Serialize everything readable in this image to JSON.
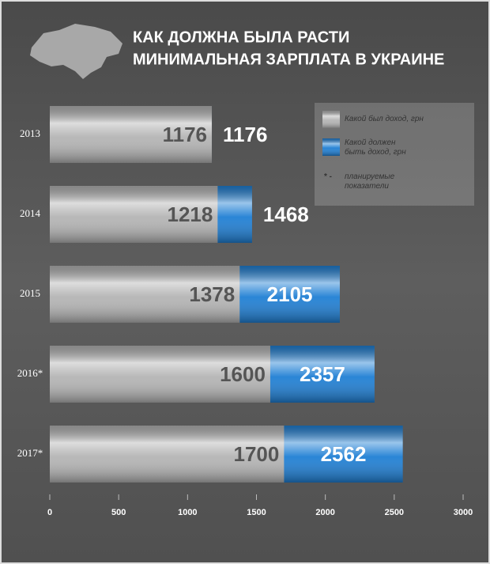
{
  "chart_data": {
    "type": "bar",
    "title": [
      "КАК ДОЛЖНА БЫЛА РАСТИ",
      "МИНИМАЛЬНАЯ ЗАРПЛАТА В УКРАИНЕ"
    ],
    "categories": [
      "2013",
      "2014",
      "2015",
      "2016*",
      "2017*"
    ],
    "series": [
      {
        "name": "Какой должен быть доход, грн",
        "color": "#1f7fd4",
        "values": [
          1176,
          1468,
          2105,
          2357,
          2562
        ]
      },
      {
        "name": "Какой был доход, грн",
        "color": "#b4b4b4",
        "values": [
          1176,
          1218,
          1378,
          1600,
          1700
        ]
      }
    ],
    "note_marker": "* -",
    "note": "планируемые показатели",
    "xlim": [
      0,
      3000
    ],
    "xticks": [
      0,
      500,
      1000,
      1500,
      2000,
      2500,
      3000
    ]
  }
}
